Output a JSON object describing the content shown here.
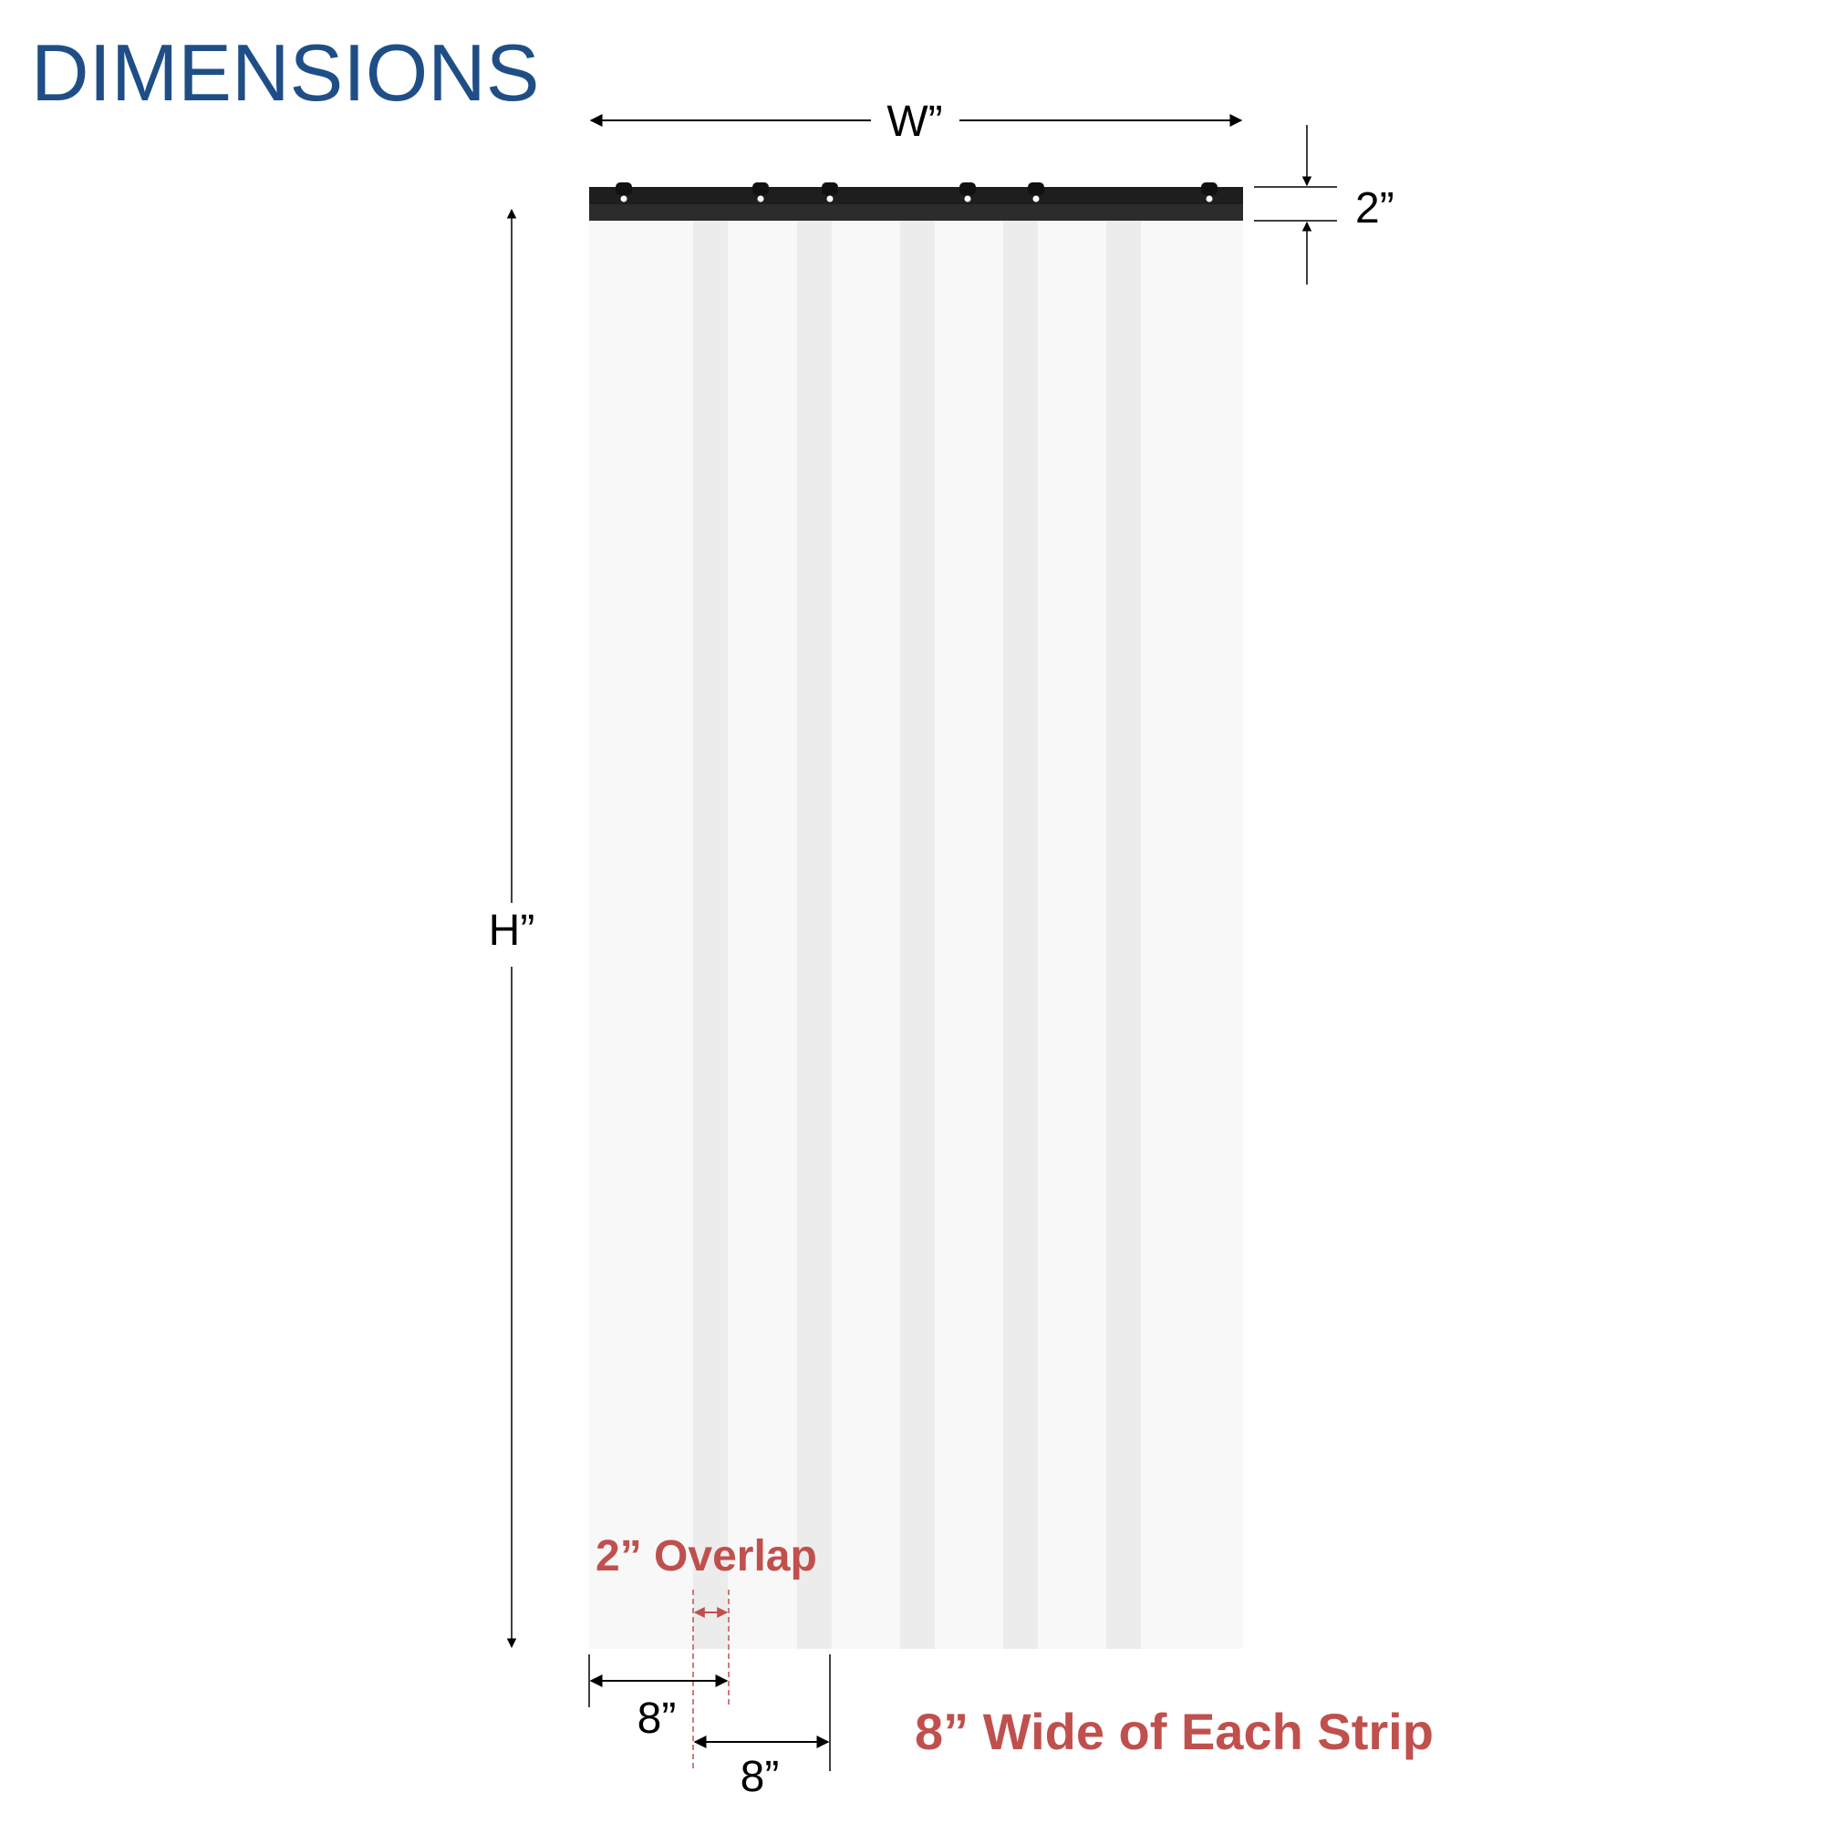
{
  "title": "DIMENSIONS",
  "labels": {
    "width": "W”",
    "height": "H”",
    "header_height": "2”",
    "overlap": "2” Overlap",
    "strip_width_1": "8”",
    "strip_width_2": "8”",
    "strip_note": "8” Wide of Each Strip"
  },
  "colors": {
    "title": "#1f4e87",
    "accent": "#c0504d",
    "header_bar": "#1e1e1e",
    "strip": "#f7f7f7",
    "overlap": "#ececec"
  }
}
